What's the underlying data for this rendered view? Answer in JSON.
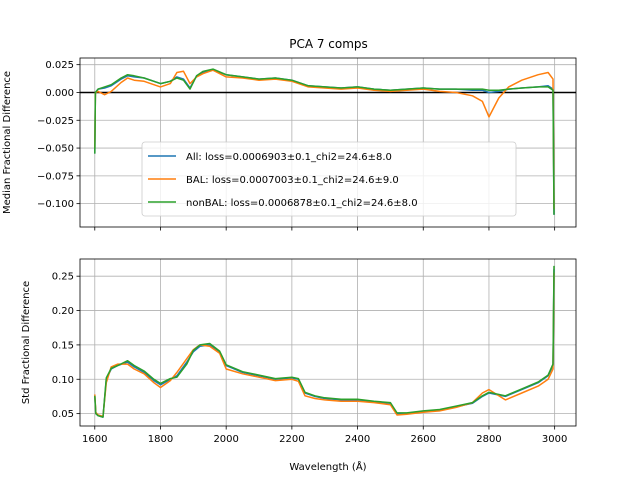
{
  "chart_data": [
    {
      "type": "line",
      "title": "PCA 7 comps",
      "ylabel": "Median Fractional Difference",
      "xlabel": "",
      "xlim": [
        1555,
        3065
      ],
      "ylim": [
        -0.121,
        0.031
      ],
      "x_ticks": [
        1600,
        1800,
        2000,
        2200,
        2400,
        2600,
        2800,
        3000
      ],
      "y_ticks": [
        -0.1,
        -0.075,
        -0.05,
        -0.025,
        0.0,
        0.025
      ],
      "y_tick_labels": [
        "−0.100",
        "−0.075",
        "−0.050",
        "−0.025",
        "0.000",
        "0.025"
      ],
      "grid": true,
      "reference_line": {
        "y": 0,
        "color": "#000000"
      },
      "legend": "center-left",
      "series": [
        {
          "name": "All: loss=0.0006903±0.1_chi2=24.6±8.0",
          "color": "#1f77b4",
          "x": [
            1600,
            1602,
            1610,
            1630,
            1650,
            1680,
            1700,
            1720,
            1750,
            1780,
            1800,
            1830,
            1850,
            1870,
            1890,
            1910,
            1930,
            1960,
            2000,
            2050,
            2100,
            2150,
            2200,
            2250,
            2300,
            2350,
            2400,
            2450,
            2500,
            2550,
            2600,
            2650,
            2700,
            2750,
            2780,
            2800,
            2830,
            2860,
            2900,
            2950,
            2980,
            2995,
            2998
          ],
          "y": [
            -0.055,
            0.0,
            0.003,
            0.004,
            0.006,
            0.012,
            0.015,
            0.014,
            0.013,
            0.01,
            0.008,
            0.01,
            0.014,
            0.012,
            0.004,
            0.015,
            0.018,
            0.02,
            0.016,
            0.014,
            0.012,
            0.013,
            0.011,
            0.006,
            0.005,
            0.004,
            0.005,
            0.003,
            0.002,
            0.003,
            0.004,
            0.003,
            0.003,
            0.002,
            0.002,
            0.0,
            0.001,
            0.003,
            0.004,
            0.005,
            0.006,
            0.003,
            -0.11
          ]
        },
        {
          "name": "BAL: loss=0.0007003±0.1_chi2=24.6±9.0",
          "color": "#ff7f0e",
          "x": [
            1600,
            1602,
            1610,
            1630,
            1650,
            1680,
            1700,
            1720,
            1750,
            1780,
            1800,
            1830,
            1850,
            1870,
            1890,
            1910,
            1930,
            1960,
            2000,
            2050,
            2100,
            2150,
            2200,
            2250,
            2300,
            2350,
            2400,
            2450,
            2500,
            2550,
            2600,
            2650,
            2700,
            2750,
            2780,
            2800,
            2830,
            2860,
            2900,
            2950,
            2980,
            2995,
            2998
          ],
          "y": [
            -0.05,
            0.0,
            0.001,
            -0.002,
            0.001,
            0.009,
            0.013,
            0.011,
            0.01,
            0.007,
            0.005,
            0.008,
            0.018,
            0.019,
            0.008,
            0.014,
            0.017,
            0.02,
            0.014,
            0.013,
            0.011,
            0.012,
            0.01,
            0.005,
            0.004,
            0.003,
            0.004,
            0.002,
            0.001,
            0.002,
            0.003,
            0.001,
            0.0,
            -0.003,
            -0.008,
            -0.022,
            -0.005,
            0.005,
            0.011,
            0.016,
            0.018,
            0.012,
            -0.105
          ]
        },
        {
          "name": "nonBAL: loss=0.0006878±0.1_chi2=24.6±8.0",
          "color": "#2ca02c",
          "x": [
            1600,
            1602,
            1610,
            1630,
            1650,
            1680,
            1700,
            1720,
            1750,
            1780,
            1800,
            1830,
            1850,
            1870,
            1890,
            1910,
            1930,
            1960,
            2000,
            2050,
            2100,
            2150,
            2200,
            2250,
            2300,
            2350,
            2400,
            2450,
            2500,
            2550,
            2600,
            2650,
            2700,
            2750,
            2780,
            2800,
            2830,
            2860,
            2900,
            2950,
            2980,
            2995,
            2998
          ],
          "y": [
            -0.055,
            0.0,
            0.003,
            0.005,
            0.007,
            0.013,
            0.016,
            0.015,
            0.013,
            0.01,
            0.008,
            0.01,
            0.013,
            0.011,
            0.003,
            0.015,
            0.019,
            0.021,
            0.016,
            0.014,
            0.012,
            0.013,
            0.011,
            0.006,
            0.005,
            0.004,
            0.005,
            0.003,
            0.002,
            0.003,
            0.004,
            0.003,
            0.003,
            0.003,
            0.003,
            0.002,
            0.002,
            0.003,
            0.004,
            0.005,
            0.005,
            0.002,
            -0.11
          ]
        }
      ]
    },
    {
      "type": "line",
      "title": "",
      "ylabel": "Std Fractional Difference",
      "xlabel": "Wavelength (Å)",
      "xlim": [
        1555,
        3065
      ],
      "ylim": [
        0.032,
        0.275
      ],
      "x_ticks": [
        1600,
        1800,
        2000,
        2200,
        2400,
        2600,
        2800,
        3000
      ],
      "y_ticks": [
        0.05,
        0.1,
        0.15,
        0.2,
        0.25
      ],
      "y_tick_labels": [
        "0.05",
        "0.10",
        "0.15",
        "0.20",
        "0.25"
      ],
      "grid": true,
      "series": [
        {
          "name": "All",
          "color": "#1f77b4",
          "x": [
            1600,
            1603,
            1610,
            1625,
            1635,
            1650,
            1670,
            1700,
            1720,
            1750,
            1780,
            1800,
            1830,
            1850,
            1880,
            1900,
            1920,
            1950,
            1980,
            2000,
            2050,
            2100,
            2150,
            2200,
            2220,
            2240,
            2270,
            2300,
            2350,
            2400,
            2450,
            2500,
            2520,
            2550,
            2600,
            2650,
            2700,
            2750,
            2780,
            2800,
            2850,
            2900,
            2950,
            2980,
            2995,
            2998
          ],
          "y": [
            0.075,
            0.05,
            0.047,
            0.045,
            0.1,
            0.115,
            0.12,
            0.125,
            0.118,
            0.11,
            0.098,
            0.092,
            0.1,
            0.105,
            0.125,
            0.14,
            0.148,
            0.15,
            0.14,
            0.12,
            0.11,
            0.105,
            0.1,
            0.102,
            0.1,
            0.08,
            0.075,
            0.072,
            0.07,
            0.07,
            0.067,
            0.065,
            0.05,
            0.05,
            0.053,
            0.055,
            0.06,
            0.065,
            0.075,
            0.08,
            0.075,
            0.085,
            0.095,
            0.105,
            0.12,
            0.26
          ]
        },
        {
          "name": "BAL",
          "color": "#ff7f0e",
          "x": [
            1600,
            1603,
            1610,
            1625,
            1635,
            1650,
            1670,
            1700,
            1720,
            1750,
            1780,
            1800,
            1830,
            1850,
            1880,
            1900,
            1920,
            1950,
            1980,
            2000,
            2050,
            2100,
            2150,
            2200,
            2220,
            2240,
            2270,
            2300,
            2350,
            2400,
            2450,
            2500,
            2520,
            2550,
            2600,
            2650,
            2700,
            2750,
            2780,
            2800,
            2850,
            2900,
            2950,
            2980,
            2995,
            2998
          ],
          "y": [
            0.078,
            0.052,
            0.048,
            0.046,
            0.095,
            0.118,
            0.122,
            0.122,
            0.115,
            0.108,
            0.095,
            0.088,
            0.098,
            0.11,
            0.13,
            0.143,
            0.15,
            0.148,
            0.138,
            0.115,
            0.108,
            0.103,
            0.098,
            0.1,
            0.097,
            0.076,
            0.072,
            0.07,
            0.068,
            0.068,
            0.066,
            0.063,
            0.048,
            0.049,
            0.052,
            0.054,
            0.059,
            0.066,
            0.08,
            0.085,
            0.07,
            0.08,
            0.09,
            0.1,
            0.115,
            0.255
          ]
        },
        {
          "name": "nonBAL",
          "color": "#2ca02c",
          "x": [
            1600,
            1603,
            1610,
            1625,
            1635,
            1650,
            1670,
            1700,
            1720,
            1750,
            1780,
            1800,
            1830,
            1850,
            1880,
            1900,
            1920,
            1950,
            1980,
            2000,
            2050,
            2100,
            2150,
            2200,
            2220,
            2240,
            2270,
            2300,
            2350,
            2400,
            2450,
            2500,
            2520,
            2550,
            2600,
            2650,
            2700,
            2750,
            2780,
            2800,
            2850,
            2900,
            2950,
            2980,
            2995,
            2998
          ],
          "y": [
            0.076,
            0.05,
            0.047,
            0.045,
            0.102,
            0.116,
            0.12,
            0.127,
            0.12,
            0.112,
            0.1,
            0.094,
            0.101,
            0.103,
            0.122,
            0.142,
            0.15,
            0.152,
            0.141,
            0.121,
            0.111,
            0.106,
            0.101,
            0.103,
            0.101,
            0.081,
            0.076,
            0.073,
            0.071,
            0.071,
            0.068,
            0.066,
            0.051,
            0.051,
            0.054,
            0.056,
            0.061,
            0.066,
            0.076,
            0.081,
            0.076,
            0.086,
            0.096,
            0.106,
            0.122,
            0.265
          ]
        }
      ]
    }
  ]
}
